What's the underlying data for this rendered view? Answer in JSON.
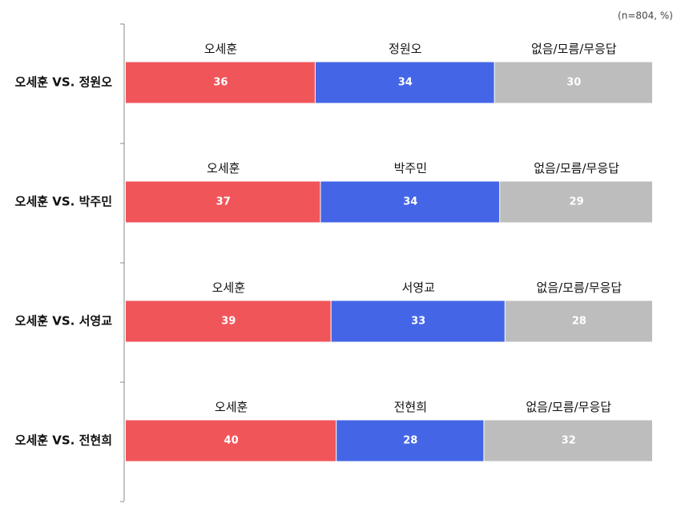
{
  "chart_data": [
    {
      "type": "bar",
      "orientation": "horizontal",
      "stacked": true,
      "note": "(n=804, %)",
      "categories": [
        "오세훈 VS. 정원오"
      ],
      "xlim": [
        0,
        100
      ],
      "series": [
        {
          "name": "오세훈",
          "color": "#f0555a",
          "values": [
            36
          ]
        },
        {
          "name": "정원오",
          "color": "#4466e6",
          "values": [
            34
          ]
        },
        {
          "name": "없음/모름/무응답",
          "color": "#bdbdbd",
          "values": [
            30
          ]
        }
      ]
    },
    {
      "type": "bar",
      "orientation": "horizontal",
      "stacked": true,
      "categories": [
        "오세훈 VS. 박주민"
      ],
      "xlim": [
        0,
        100
      ],
      "series": [
        {
          "name": "오세훈",
          "color": "#f0555a",
          "values": [
            37
          ]
        },
        {
          "name": "박주민",
          "color": "#4466e6",
          "values": [
            34
          ]
        },
        {
          "name": "없음/모름/무응답",
          "color": "#bdbdbd",
          "values": [
            29
          ]
        }
      ]
    },
    {
      "type": "bar",
      "orientation": "horizontal",
      "stacked": true,
      "categories": [
        "오세훈 VS. 서영교"
      ],
      "xlim": [
        0,
        100
      ],
      "series": [
        {
          "name": "오세훈",
          "color": "#f0555a",
          "values": [
            39
          ]
        },
        {
          "name": "서영교",
          "color": "#4466e6",
          "values": [
            33
          ]
        },
        {
          "name": "없음/모름/무응답",
          "color": "#bdbdbd",
          "values": [
            28
          ]
        }
      ]
    },
    {
      "type": "bar",
      "orientation": "horizontal",
      "stacked": true,
      "categories": [
        "오세훈 VS. 전현희"
      ],
      "xlim": [
        0,
        100
      ],
      "series": [
        {
          "name": "오세훈",
          "color": "#f0555a",
          "values": [
            40
          ]
        },
        {
          "name": "전현희",
          "color": "#4466e6",
          "values": [
            28
          ]
        },
        {
          "name": "없음/모름/무응답",
          "color": "#bdbdbd",
          "values": [
            32
          ]
        }
      ]
    }
  ]
}
